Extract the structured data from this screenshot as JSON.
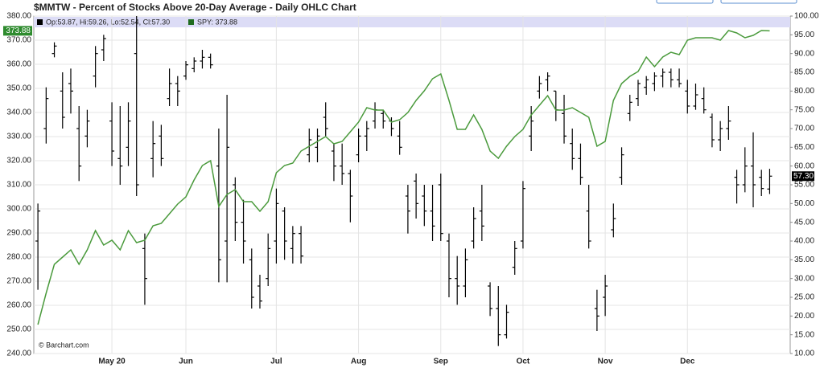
{
  "chart_data": {
    "type": "ohlc",
    "title": "$MMTW - Percent of Stocks Above 20-Day Average - Daily OHLC Chart",
    "ohlc_legend": "Op:53.87, Hi:59.26, Lo:52.54, Cl:57.30",
    "spy_legend": "SPY: 373.88",
    "spy_last_label": "373.88",
    "close_last_label": "57.30",
    "credit": "© Barchart.com",
    "grid": true,
    "categories": [
      null,
      null,
      null,
      null,
      null,
      null,
      null,
      null,
      null,
      "May 20",
      null,
      null,
      null,
      null,
      null,
      null,
      null,
      null,
      "Jun",
      null,
      null,
      null,
      null,
      null,
      null,
      null,
      null,
      null,
      null,
      "Jul",
      null,
      null,
      null,
      null,
      null,
      null,
      null,
      null,
      null,
      "Aug",
      null,
      null,
      null,
      null,
      null,
      null,
      null,
      null,
      null,
      "Sep",
      null,
      null,
      null,
      null,
      null,
      null,
      null,
      null,
      null,
      "Oct",
      null,
      null,
      null,
      null,
      null,
      null,
      null,
      null,
      null,
      "Nov",
      null,
      null,
      null,
      null,
      null,
      null,
      null,
      null,
      null,
      "Dec",
      null,
      null,
      null,
      null,
      null,
      null,
      null,
      null,
      null,
      null
    ],
    "ylim": [
      240,
      380
    ],
    "yticks": [
      {
        "value": 240,
        "label": "240.00"
      },
      {
        "value": 250,
        "label": "250.00"
      },
      {
        "value": 260,
        "label": "260.00"
      },
      {
        "value": 270,
        "label": "270.00"
      },
      {
        "value": 280,
        "label": "280.00"
      },
      {
        "value": 290,
        "label": "290.00"
      },
      {
        "value": 300,
        "label": "300.00"
      },
      {
        "value": 310,
        "label": "310.00"
      },
      {
        "value": 320,
        "label": "320.00"
      },
      {
        "value": 330,
        "label": "330.00"
      },
      {
        "value": 340,
        "label": "340.00"
      },
      {
        "value": 350,
        "label": "350.00"
      },
      {
        "value": 360,
        "label": "360.00"
      },
      {
        "value": 370,
        "label": "370.00"
      },
      {
        "value": 380,
        "label": "380.00"
      }
    ],
    "y2lim": [
      10,
      100
    ],
    "y2ticks": [
      {
        "value": 10,
        "label": "10.00"
      },
      {
        "value": 15,
        "label": "15.00"
      },
      {
        "value": 20,
        "label": "20.00"
      },
      {
        "value": 25,
        "label": "25.00"
      },
      {
        "value": 30,
        "label": "30.00"
      },
      {
        "value": 35,
        "label": "35.00"
      },
      {
        "value": 40,
        "label": "40.00"
      },
      {
        "value": 45,
        "label": "45.00"
      },
      {
        "value": 50,
        "label": "50.00"
      },
      {
        "value": 55,
        "label": "55.00"
      },
      {
        "value": 60,
        "label": "60.00"
      },
      {
        "value": 65,
        "label": "65.00"
      },
      {
        "value": 70,
        "label": "70.00"
      },
      {
        "value": 75,
        "label": "75.00"
      },
      {
        "value": 80,
        "label": "80.00"
      },
      {
        "value": 85,
        "label": "85.00"
      },
      {
        "value": 90,
        "label": "90.00"
      },
      {
        "value": 95,
        "label": "95.00"
      },
      {
        "value": 100,
        "label": "100.00"
      }
    ],
    "series": [
      {
        "color": "#000000",
        "axis": "y2",
        "open": [
          40,
          70,
          90,
          80,
          82,
          70,
          68,
          84,
          91,
          72,
          62,
          65,
          90,
          38,
          62,
          68,
          78,
          82,
          84,
          86,
          88,
          89,
          60,
          40,
          55,
          45,
          35,
          28,
          30,
          40,
          48,
          38,
          42,
          63,
          65,
          73,
          64,
          60,
          58,
          63,
          68,
          72,
          74,
          72,
          68,
          52,
          56,
          52,
          48,
          55,
          40,
          30,
          28,
          40,
          48,
          28,
          22,
          15,
          33,
          40,
          68,
          80,
          83,
          80,
          74,
          66,
          62,
          48,
          22,
          25,
          43,
          57,
          74,
          78,
          81,
          82,
          84,
          85,
          83,
          80,
          76,
          78,
          73,
          67,
          70,
          57,
          55,
          60,
          57,
          53.87
        ],
        "high": [
          50,
          81,
          93,
          85,
          86,
          76,
          75,
          92,
          95,
          77,
          76,
          77,
          100,
          42,
          72,
          71,
          86,
          84,
          88,
          89,
          91,
          90,
          70,
          79,
          57,
          51,
          38,
          31,
          42,
          54,
          49,
          44,
          44,
          70,
          70,
          77,
          66,
          66,
          59,
          70,
          72,
          77,
          75,
          73,
          72,
          55,
          58,
          55,
          55,
          58,
          42,
          36,
          38,
          49,
          55,
          29,
          28,
          23,
          40,
          56,
          76,
          84,
          85,
          80,
          79,
          70,
          66,
          55,
          27,
          31,
          50,
          65,
          79,
          83,
          84,
          85,
          86,
          86,
          86,
          83,
          82,
          81,
          74,
          72,
          76,
          59,
          65,
          69,
          59,
          59.26
        ],
        "low": [
          27,
          66,
          89,
          70,
          74,
          56,
          65,
          81,
          88,
          60,
          55,
          60,
          52,
          23,
          57,
          60,
          76,
          76,
          83,
          85,
          86,
          86,
          29,
          29,
          40,
          34,
          22,
          22,
          28,
          34,
          35,
          34,
          34,
          61,
          61,
          68,
          56,
          55,
          45,
          61,
          64,
          70,
          70,
          68,
          63,
          42,
          46,
          44,
          40,
          40,
          25,
          23,
          25,
          38,
          40,
          20,
          12,
          14,
          31,
          38,
          64,
          78,
          80,
          72,
          66,
          59,
          55,
          38,
          16,
          20,
          41,
          55,
          72,
          76,
          79,
          80,
          81,
          81,
          81,
          74,
          75,
          74,
          65,
          64,
          67,
          50,
          53,
          49,
          52,
          52.54
        ],
        "close": [
          48,
          78,
          92,
          73,
          80,
          60,
          72,
          90,
          94,
          64,
          60,
          72,
          55,
          30,
          66,
          62,
          82,
          80,
          87,
          88,
          89,
          87,
          35,
          65,
          45,
          40,
          25,
          24,
          38,
          50,
          40,
          42,
          36,
          67,
          68,
          70,
          60,
          58,
          52,
          68,
          70,
          75,
          72,
          70,
          65,
          48,
          50,
          48,
          44,
          42,
          30,
          28,
          35,
          46,
          44,
          22,
          15,
          21,
          38,
          54,
          72,
          82,
          84,
          75,
          68,
          62,
          57,
          40,
          20,
          28,
          46,
          63,
          77,
          82,
          83,
          84,
          85,
          83,
          82,
          76,
          79,
          75,
          67,
          70,
          72,
          55,
          60,
          55,
          54,
          57.3
        ]
      },
      {
        "color": "#4a9a3c",
        "values": [
          252,
          265,
          277,
          280,
          283,
          277,
          283,
          291,
          285,
          287,
          283,
          291,
          286,
          287,
          293,
          294,
          298,
          302,
          305,
          312,
          318,
          320,
          301,
          306,
          308,
          303,
          303,
          299,
          303,
          315,
          318,
          319,
          324,
          326,
          328,
          330,
          327,
          328,
          332,
          336,
          342,
          341,
          341,
          336,
          337,
          340,
          345,
          349,
          354,
          356,
          345,
          333,
          333,
          339,
          333,
          324,
          321,
          326,
          330,
          333,
          339,
          343,
          347,
          341,
          341,
          342,
          340,
          338,
          326,
          328,
          345,
          352,
          355,
          357,
          363,
          359,
          363,
          365,
          364,
          370,
          371,
          371,
          371,
          370,
          374,
          373,
          371,
          372,
          374,
          373.88
        ]
      }
    ]
  }
}
